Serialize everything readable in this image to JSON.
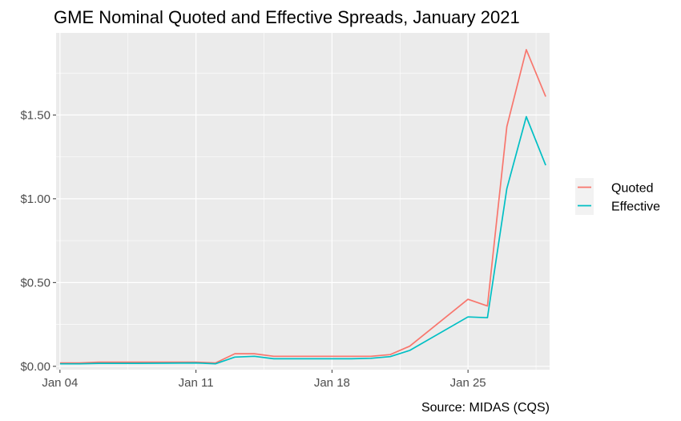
{
  "chart_data": {
    "type": "line",
    "title": "GME Nominal Quoted and Effective Spreads, January 2021",
    "caption": "Source: MIDAS (CQS)",
    "xlabel": "",
    "ylabel": "",
    "x": [
      "2021-01-04",
      "2021-01-05",
      "2021-01-06",
      "2021-01-07",
      "2021-01-08",
      "2021-01-11",
      "2021-01-12",
      "2021-01-13",
      "2021-01-14",
      "2021-01-15",
      "2021-01-19",
      "2021-01-20",
      "2021-01-21",
      "2021-01-22",
      "2021-01-25",
      "2021-01-26",
      "2021-01-27",
      "2021-01-28",
      "2021-01-29"
    ],
    "xlim": [
      "2021-01-04",
      "2021-01-29"
    ],
    "x_ticks": [
      {
        "date": "2021-01-04",
        "label": "Jan 04"
      },
      {
        "date": "2021-01-11",
        "label": "Jan 11"
      },
      {
        "date": "2021-01-18",
        "label": "Jan 18"
      },
      {
        "date": "2021-01-25",
        "label": "Jan 25"
      }
    ],
    "ylim": [
      -0.02,
      1.99
    ],
    "y_ticks": [
      {
        "value": 0,
        "label": "$0.00"
      },
      {
        "value": 0.5,
        "label": "$0.50"
      },
      {
        "value": 1,
        "label": "$1.00"
      },
      {
        "value": 1.5,
        "label": "$1.50"
      }
    ],
    "series": [
      {
        "name": "Quoted",
        "color": "#F8766D",
        "values": [
          0.02,
          0.02,
          0.025,
          0.025,
          0.025,
          0.025,
          0.02,
          0.075,
          0.075,
          0.06,
          0.06,
          0.06,
          0.07,
          0.12,
          0.4,
          0.36,
          1.43,
          1.89,
          1.61
        ]
      },
      {
        "name": "Effective",
        "color": "#00BFC4",
        "values": [
          0.015,
          0.015,
          0.018,
          0.018,
          0.018,
          0.02,
          0.015,
          0.055,
          0.06,
          0.045,
          0.045,
          0.048,
          0.058,
          0.095,
          0.295,
          0.29,
          1.06,
          1.49,
          1.2
        ]
      }
    ],
    "grid": true,
    "legend_position": "right"
  }
}
